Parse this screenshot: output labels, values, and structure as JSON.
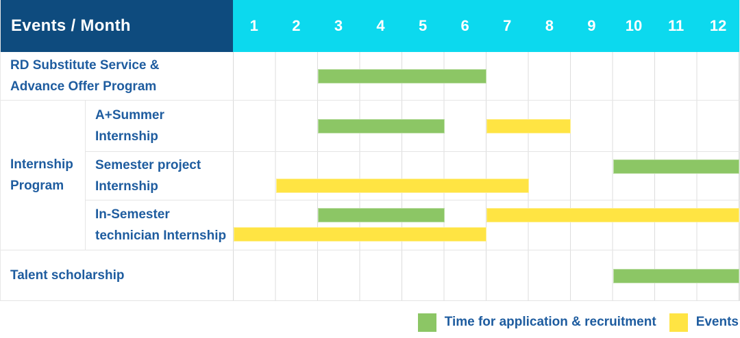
{
  "chart_data": {
    "type": "gantt",
    "corner_header": "Events / Month",
    "x_axis": {
      "unit": "Month",
      "range": [
        1,
        12
      ],
      "ticks": [
        "1",
        "2",
        "3",
        "4",
        "5",
        "6",
        "7",
        "8",
        "9",
        "10",
        "11",
        "12"
      ]
    },
    "series_colors": {
      "recruitment": "#8CC665",
      "events": "#FFE443"
    },
    "legend": [
      {
        "series": "recruitment",
        "label": "Time for application & recruitment",
        "color": "#8CC665"
      },
      {
        "series": "events",
        "label": "Events",
        "color": "#FFE443"
      }
    ],
    "group": {
      "label_lines": [
        "Internship",
        "Program"
      ],
      "row_indexes": [
        1,
        2,
        3
      ]
    },
    "rows": [
      {
        "label_lines": [
          "RD Substitute Service &",
          "Advance Offer Program"
        ],
        "bars": [
          {
            "series": "recruitment",
            "start_month": 3,
            "end_month": 6,
            "lane": 0
          }
        ]
      },
      {
        "label_lines": [
          "A+Summer",
          "Internship"
        ],
        "bars": [
          {
            "series": "recruitment",
            "start_month": 3,
            "end_month": 5,
            "lane": 0
          },
          {
            "series": "events",
            "start_month": 7,
            "end_month": 8,
            "lane": 0
          }
        ]
      },
      {
        "label_lines": [
          "Semester project",
          "Internship"
        ],
        "bars": [
          {
            "series": "recruitment",
            "start_month": 10,
            "end_month": 12,
            "lane": 0
          },
          {
            "series": "events",
            "start_month": 2,
            "end_month": 7,
            "lane": 1
          }
        ]
      },
      {
        "label_lines": [
          "In-Semester",
          "technician Internship"
        ],
        "bars": [
          {
            "series": "recruitment",
            "start_month": 3,
            "end_month": 5,
            "lane": 0
          },
          {
            "series": "events",
            "start_month": 7,
            "end_month": 12,
            "lane": 0
          },
          {
            "series": "events",
            "start_month": 1,
            "end_month": 6,
            "lane": 1
          }
        ]
      },
      {
        "label_lines": [
          "Talent scholarship"
        ],
        "bars": [
          {
            "series": "recruitment",
            "start_month": 10,
            "end_month": 12,
            "lane": 0
          }
        ]
      }
    ]
  },
  "colors": {
    "header_bg": "#0E4B7E",
    "months_bg": "#0CD9EE",
    "header_text": "#FFFFFF",
    "label_text": "#1E5C9F",
    "grid_line": "#DCDCDC",
    "row_border": "#E5E5E5",
    "bar_green": "#8CC665",
    "bar_yellow": "#FFE443"
  }
}
